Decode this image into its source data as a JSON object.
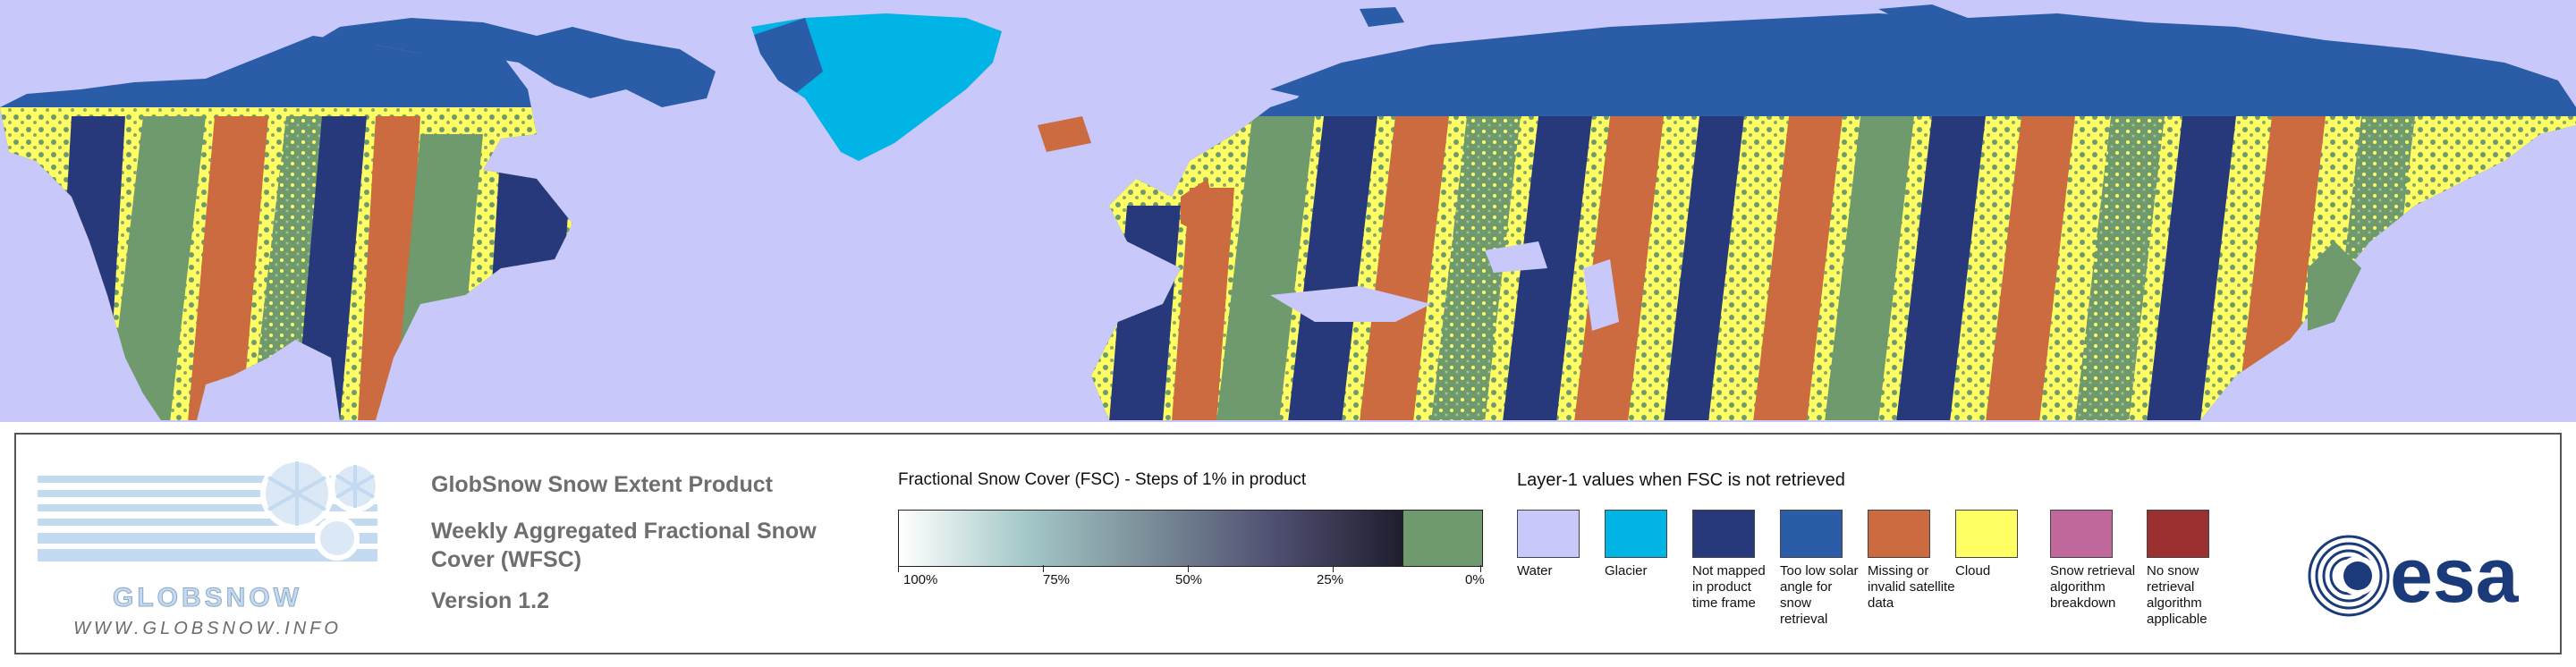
{
  "logo": {
    "name": "GLOBSNOW",
    "url": "WWW.GLOBSNOW.INFO"
  },
  "product": {
    "title": "GlobSnow Snow Extent Product",
    "subtitle": "Weekly Aggregated Fractional Snow Cover (WFSC)",
    "version": "Version 1.2"
  },
  "fsc_legend": {
    "title": "Fractional Snow Cover (FSC) - Steps of 1% in product",
    "ticks": [
      "100%",
      "75%",
      "50%",
      "25%",
      "0%"
    ],
    "gradient_start": "#ffffff",
    "gradient_end": "#1e1e2e",
    "zero_color": "#6e9a6e"
  },
  "layer1_legend": {
    "title": "Layer-1 values when FSC is not retrieved",
    "items": [
      {
        "label": "Water",
        "color": "#c8c8fa"
      },
      {
        "label": "Glacier",
        "color": "#00b4e6"
      },
      {
        "label": "Not mapped in product time frame",
        "color": "#27397a"
      },
      {
        "label": "Too low solar angle for snow retrieval",
        "color": "#2a5ca8"
      },
      {
        "label": "Missing or invalid satellite data",
        "color": "#cc6b40"
      },
      {
        "label": "Cloud",
        "color": "#ffff64"
      },
      {
        "label": "Snow retrieval algorithm breakdown",
        "color": "#c0679c"
      },
      {
        "label": "No snow retrieval algorithm applicable",
        "color": "#9c3030"
      }
    ]
  },
  "esa_logo": {
    "text": "esa"
  }
}
